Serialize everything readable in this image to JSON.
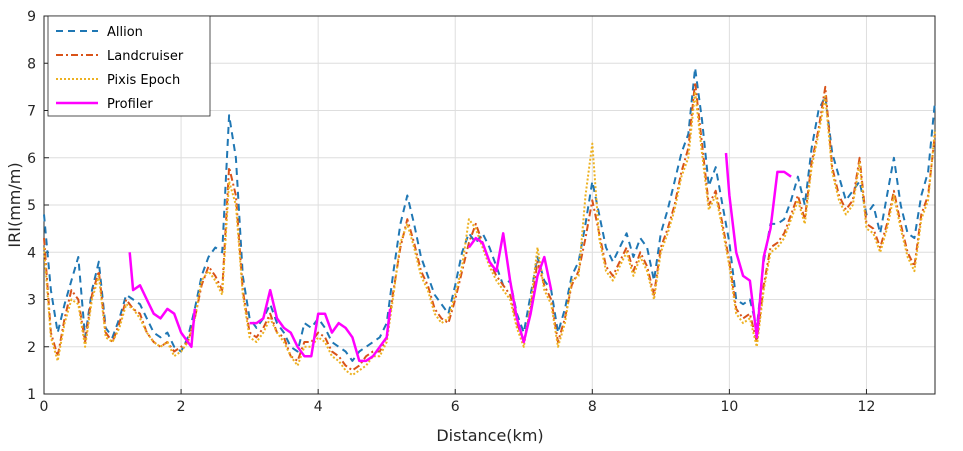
{
  "chart_data": {
    "type": "line",
    "xlabel": "Distance(km)",
    "ylabel": "IRI(mm/m)",
    "xlim": [
      0,
      13
    ],
    "ylim": [
      1,
      9
    ],
    "xticks": [
      0,
      2,
      4,
      6,
      8,
      10,
      12
    ],
    "yticks": [
      1,
      2,
      3,
      4,
      5,
      6,
      7,
      8,
      9
    ],
    "grid": true,
    "legend_position": "top-left",
    "colors": {
      "Allion": "#1f77b4",
      "Landcruiser": "#d95319",
      "Pixis Epoch": "#edb120",
      "Profiler": "#ff00ff"
    },
    "series": [
      {
        "name": "Allion",
        "style": "dashed",
        "x": [
          0.0,
          0.1,
          0.2,
          0.3,
          0.4,
          0.5,
          0.6,
          0.7,
          0.8,
          0.9,
          1.0,
          1.1,
          1.2,
          1.3,
          1.4,
          1.5,
          1.6,
          1.7,
          1.8,
          1.9,
          2.0,
          2.1,
          2.2,
          2.3,
          2.4,
          2.5,
          2.6,
          2.7,
          2.8,
          2.9,
          3.0,
          3.1,
          3.2,
          3.3,
          3.4,
          3.5,
          3.6,
          3.7,
          3.8,
          3.9,
          4.0,
          4.1,
          4.2,
          4.3,
          4.4,
          4.5,
          4.6,
          4.7,
          4.8,
          4.9,
          5.0,
          5.1,
          5.2,
          5.3,
          5.4,
          5.5,
          5.6,
          5.7,
          5.8,
          5.9,
          6.0,
          6.1,
          6.2,
          6.3,
          6.4,
          6.5,
          6.6,
          6.7,
          6.8,
          6.9,
          7.0,
          7.1,
          7.2,
          7.3,
          7.4,
          7.5,
          7.6,
          7.7,
          7.8,
          7.9,
          8.0,
          8.1,
          8.2,
          8.3,
          8.4,
          8.5,
          8.6,
          8.7,
          8.8,
          8.9,
          9.0,
          9.1,
          9.2,
          9.3,
          9.4,
          9.5,
          9.6,
          9.7,
          9.8,
          9.9,
          10.0,
          10.1,
          10.2,
          10.3,
          10.4,
          10.5,
          10.6,
          10.7,
          10.8,
          10.9,
          11.0,
          11.1,
          11.2,
          11.3,
          11.4,
          11.5,
          11.6,
          11.7,
          11.8,
          11.9,
          12.0,
          12.1,
          12.2,
          12.3,
          12.4,
          12.5,
          12.6,
          12.7,
          12.8,
          12.9,
          13.0
        ],
        "y": [
          4.8,
          3.2,
          2.3,
          2.9,
          3.4,
          3.9,
          2.2,
          3.2,
          3.8,
          2.4,
          2.2,
          2.6,
          3.1,
          3.0,
          2.9,
          2.6,
          2.3,
          2.2,
          2.3,
          2.0,
          1.9,
          2.2,
          2.8,
          3.5,
          3.9,
          4.1,
          4.0,
          6.9,
          6.0,
          3.5,
          2.6,
          2.4,
          2.6,
          2.9,
          2.5,
          2.3,
          2.0,
          1.9,
          2.5,
          2.4,
          2.6,
          2.4,
          2.1,
          2.0,
          1.9,
          1.7,
          1.9,
          2.0,
          2.1,
          2.2,
          2.5,
          3.6,
          4.6,
          5.2,
          4.6,
          3.9,
          3.5,
          3.1,
          2.9,
          2.7,
          3.3,
          4.0,
          4.4,
          4.2,
          4.4,
          4.1,
          3.7,
          3.3,
          3.4,
          2.7,
          2.3,
          3.1,
          3.9,
          3.4,
          3.2,
          2.3,
          2.8,
          3.5,
          3.8,
          4.6,
          5.5,
          4.8,
          4.1,
          3.8,
          4.1,
          4.4,
          3.9,
          4.3,
          4.1,
          3.4,
          4.4,
          4.9,
          5.5,
          6.1,
          6.5,
          7.9,
          6.8,
          5.4,
          5.8,
          5.0,
          4.2,
          3.0,
          2.9,
          3.0,
          2.4,
          3.8,
          4.6,
          4.6,
          4.7,
          5.1,
          5.6,
          5.0,
          6.2,
          7.0,
          7.3,
          6.1,
          5.6,
          5.1,
          5.3,
          5.5,
          4.8,
          5.0,
          4.4,
          5.2,
          6.0,
          5.0,
          4.4,
          4.3,
          5.2,
          5.7,
          7.2
        ]
      },
      {
        "name": "Landcruiser",
        "style": "dashdot",
        "x": [
          0.0,
          0.1,
          0.2,
          0.3,
          0.4,
          0.5,
          0.6,
          0.7,
          0.8,
          0.9,
          1.0,
          1.1,
          1.2,
          1.3,
          1.4,
          1.5,
          1.6,
          1.7,
          1.8,
          1.9,
          2.0,
          2.1,
          2.2,
          2.3,
          2.4,
          2.5,
          2.6,
          2.7,
          2.8,
          2.9,
          3.0,
          3.1,
          3.2,
          3.3,
          3.4,
          3.5,
          3.6,
          3.7,
          3.8,
          3.9,
          4.0,
          4.1,
          4.2,
          4.3,
          4.4,
          4.5,
          4.6,
          4.7,
          4.8,
          4.9,
          5.0,
          5.1,
          5.2,
          5.3,
          5.4,
          5.5,
          5.6,
          5.7,
          5.8,
          5.9,
          6.0,
          6.1,
          6.2,
          6.3,
          6.4,
          6.5,
          6.6,
          6.7,
          6.8,
          6.9,
          7.0,
          7.1,
          7.2,
          7.3,
          7.4,
          7.5,
          7.6,
          7.7,
          7.8,
          7.9,
          8.0,
          8.1,
          8.2,
          8.3,
          8.4,
          8.5,
          8.6,
          8.7,
          8.8,
          8.9,
          9.0,
          9.1,
          9.2,
          9.3,
          9.4,
          9.5,
          9.6,
          9.7,
          9.8,
          9.9,
          10.0,
          10.1,
          10.2,
          10.3,
          10.4,
          10.5,
          10.6,
          10.7,
          10.8,
          10.9,
          11.0,
          11.1,
          11.2,
          11.3,
          11.4,
          11.5,
          11.6,
          11.7,
          11.8,
          11.9,
          12.0,
          12.1,
          12.2,
          12.3,
          12.4,
          12.5,
          12.6,
          12.7,
          12.8,
          12.9,
          13.0
        ],
        "y": [
          4.3,
          2.3,
          1.8,
          2.6,
          3.2,
          3.0,
          2.1,
          3.1,
          3.6,
          2.3,
          2.1,
          2.5,
          3.0,
          2.8,
          2.7,
          2.3,
          2.1,
          2.0,
          2.1,
          1.9,
          2.0,
          2.1,
          2.6,
          3.3,
          3.7,
          3.5,
          3.2,
          5.8,
          5.2,
          3.2,
          2.3,
          2.2,
          2.4,
          2.7,
          2.3,
          2.2,
          1.8,
          1.7,
          2.1,
          2.1,
          2.3,
          2.2,
          1.9,
          1.8,
          1.6,
          1.5,
          1.6,
          1.8,
          1.9,
          1.9,
          2.2,
          3.2,
          4.1,
          4.7,
          4.2,
          3.6,
          3.3,
          2.8,
          2.6,
          2.5,
          3.0,
          3.6,
          4.2,
          4.6,
          4.2,
          3.8,
          3.5,
          3.3,
          3.1,
          2.5,
          2.1,
          2.8,
          3.8,
          3.3,
          3.0,
          2.1,
          2.6,
          3.3,
          3.6,
          4.3,
          5.1,
          4.4,
          3.7,
          3.5,
          3.8,
          4.1,
          3.6,
          4.0,
          3.7,
          3.1,
          4.1,
          4.5,
          5.0,
          5.7,
          6.2,
          7.6,
          6.3,
          5.0,
          5.3,
          4.6,
          3.8,
          2.8,
          2.6,
          2.7,
          2.1,
          3.3,
          4.1,
          4.2,
          4.4,
          4.8,
          5.2,
          4.7,
          5.9,
          6.6,
          7.5,
          5.8,
          5.2,
          4.9,
          5.1,
          6.0,
          4.6,
          4.5,
          4.1,
          4.6,
          5.3,
          4.6,
          4.0,
          3.7,
          4.8,
          5.2,
          6.5
        ]
      },
      {
        "name": "Pixis Epoch",
        "style": "dotted",
        "x": [
          0.0,
          0.1,
          0.2,
          0.3,
          0.4,
          0.5,
          0.6,
          0.7,
          0.8,
          0.9,
          1.0,
          1.1,
          1.2,
          1.3,
          1.4,
          1.5,
          1.6,
          1.7,
          1.8,
          1.9,
          2.0,
          2.1,
          2.2,
          2.3,
          2.4,
          2.5,
          2.6,
          2.7,
          2.8,
          2.9,
          3.0,
          3.1,
          3.2,
          3.3,
          3.4,
          3.5,
          3.6,
          3.7,
          3.8,
          3.9,
          4.0,
          4.1,
          4.2,
          4.3,
          4.4,
          4.5,
          4.6,
          4.7,
          4.8,
          4.9,
          5.0,
          5.1,
          5.2,
          5.3,
          5.4,
          5.5,
          5.6,
          5.7,
          5.8,
          5.9,
          6.0,
          6.1,
          6.2,
          6.3,
          6.4,
          6.5,
          6.6,
          6.7,
          6.8,
          6.9,
          7.0,
          7.1,
          7.2,
          7.3,
          7.4,
          7.5,
          7.6,
          7.7,
          7.8,
          7.9,
          8.0,
          8.1,
          8.2,
          8.3,
          8.4,
          8.5,
          8.6,
          8.7,
          8.8,
          8.9,
          9.0,
          9.1,
          9.2,
          9.3,
          9.4,
          9.5,
          9.6,
          9.7,
          9.8,
          9.9,
          10.0,
          10.1,
          10.2,
          10.3,
          10.4,
          10.5,
          10.6,
          10.7,
          10.8,
          10.9,
          11.0,
          11.1,
          11.2,
          11.3,
          11.4,
          11.5,
          11.6,
          11.7,
          11.8,
          11.9,
          12.0,
          12.1,
          12.2,
          12.3,
          12.4,
          12.5,
          12.6,
          12.7,
          12.8,
          12.9,
          13.0
        ],
        "y": [
          4.1,
          2.2,
          1.7,
          2.5,
          3.0,
          2.9,
          2.0,
          3.0,
          3.5,
          2.2,
          2.1,
          2.4,
          2.9,
          2.8,
          2.6,
          2.3,
          2.1,
          2.0,
          2.1,
          1.8,
          1.9,
          2.1,
          2.6,
          3.4,
          3.6,
          3.4,
          3.1,
          5.5,
          5.0,
          3.1,
          2.2,
          2.1,
          2.3,
          2.6,
          2.3,
          2.1,
          1.8,
          1.6,
          2.0,
          2.0,
          2.2,
          2.1,
          1.8,
          1.7,
          1.5,
          1.4,
          1.5,
          1.6,
          1.8,
          1.8,
          2.1,
          3.1,
          4.2,
          4.6,
          4.1,
          3.5,
          3.2,
          2.7,
          2.5,
          2.6,
          3.1,
          3.7,
          4.7,
          4.5,
          4.1,
          3.7,
          3.4,
          3.2,
          3.0,
          2.4,
          2.0,
          2.9,
          4.1,
          3.2,
          2.9,
          2.0,
          2.5,
          3.4,
          3.5,
          5.2,
          6.3,
          4.3,
          3.6,
          3.4,
          3.7,
          4.0,
          3.5,
          3.9,
          3.6,
          3.0,
          4.0,
          4.4,
          4.9,
          5.6,
          6.0,
          7.4,
          6.1,
          4.9,
          5.2,
          4.5,
          3.7,
          2.7,
          2.5,
          2.6,
          2.0,
          3.2,
          4.0,
          4.1,
          4.3,
          4.7,
          5.1,
          4.6,
          5.8,
          6.5,
          7.3,
          5.7,
          5.1,
          4.8,
          5.0,
          5.9,
          4.5,
          4.4,
          4.0,
          4.5,
          5.2,
          4.5,
          3.9,
          3.6,
          4.7,
          5.1,
          6.6
        ]
      },
      {
        "name": "Profiler",
        "style": "solid",
        "segments": [
          {
            "x": [
              1.25,
              1.3,
              1.4,
              1.5,
              1.6,
              1.7,
              1.8,
              1.9,
              2.0,
              2.1,
              2.15,
              2.2
            ],
            "y": [
              4.0,
              3.2,
              3.3,
              3.0,
              2.7,
              2.6,
              2.8,
              2.7,
              2.3,
              2.1,
              2.0,
              2.8
            ]
          },
          {
            "x": [
              3.0,
              3.1,
              3.2,
              3.3,
              3.4,
              3.5,
              3.6,
              3.7,
              3.8,
              3.9,
              4.0,
              4.1,
              4.2,
              4.3,
              4.4,
              4.5,
              4.6,
              4.7,
              4.8,
              4.9,
              5.0,
              5.05
            ],
            "y": [
              2.5,
              2.5,
              2.6,
              3.2,
              2.6,
              2.4,
              2.3,
              2.0,
              1.8,
              1.8,
              2.7,
              2.7,
              2.3,
              2.5,
              2.4,
              2.2,
              1.7,
              1.7,
              1.8,
              2.0,
              2.2,
              2.8
            ]
          },
          {
            "x": [
              6.2,
              6.3,
              6.4,
              6.5,
              6.6,
              6.7,
              6.8,
              6.9,
              7.0,
              7.1,
              7.2,
              7.3,
              7.4
            ],
            "y": [
              4.1,
              4.3,
              4.2,
              3.8,
              3.6,
              4.4,
              3.4,
              2.6,
              2.1,
              2.7,
              3.5,
              3.9,
              3.2
            ]
          },
          {
            "x": [
              9.95,
              10.0,
              10.1,
              10.2,
              10.3,
              10.4,
              10.5,
              10.6,
              10.7,
              10.8,
              10.9
            ],
            "y": [
              6.1,
              5.2,
              4.0,
              3.5,
              3.4,
              2.2,
              3.9,
              4.5,
              5.7,
              5.7,
              5.6
            ]
          }
        ]
      }
    ]
  }
}
